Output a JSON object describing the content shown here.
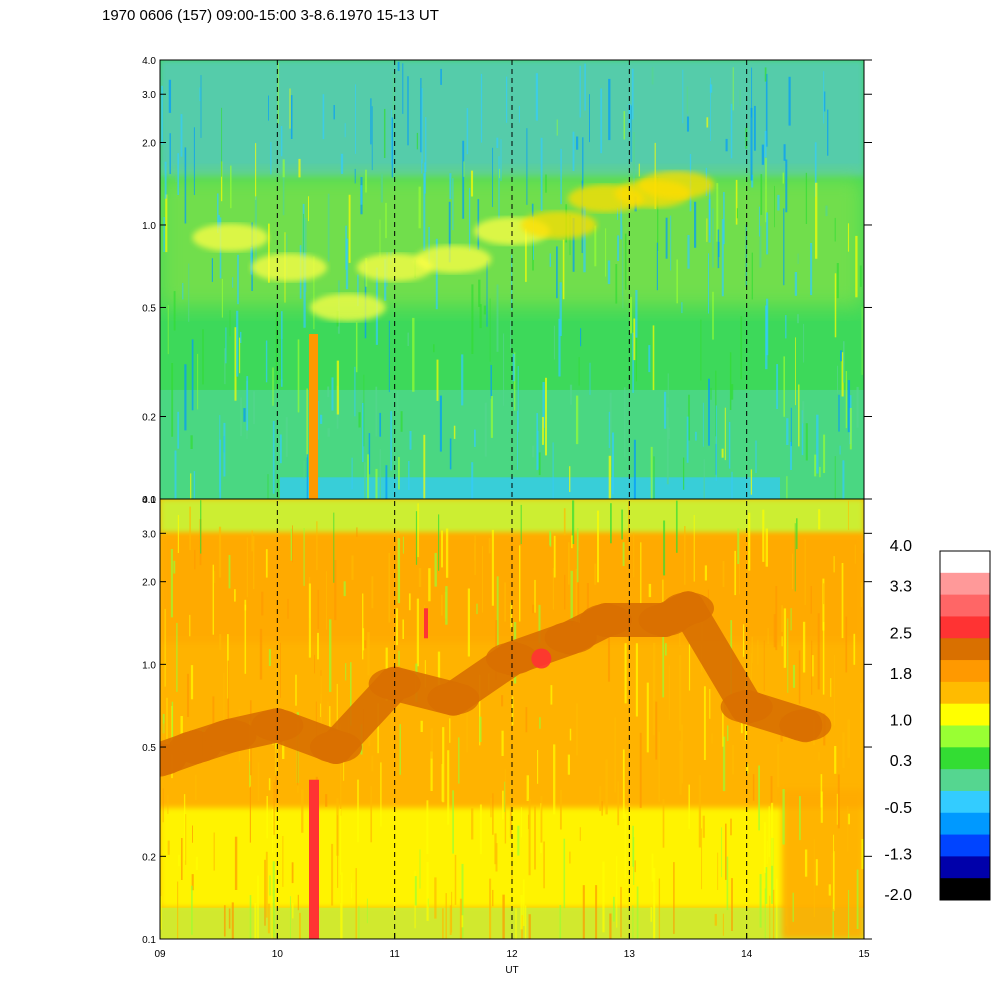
{
  "chart_data": {
    "type": "heatmap",
    "title": "1970 0606 (157) 09:00-15:00 3-8.6.1970  15-13 UT",
    "xlabel": "UT",
    "x_ticks": [
      "09",
      "10",
      "11",
      "12",
      "13",
      "14",
      "15"
    ],
    "xlim": [
      9,
      15
    ],
    "x_scale": "linear (hours UT)",
    "grid": "dashed vertical lines at each hour",
    "panels": [
      {
        "name": "upper",
        "y_scale": "log",
        "ylim": [
          0.1,
          4.0
        ],
        "y_ticks": [
          "0.1",
          "0.2",
          "0.5",
          "1.0",
          "2.0",
          "3.0",
          "4.0"
        ],
        "dominant_levels": "green/cyan (0.3 to -0.5) with yellow-orange band near 1.0-1.5",
        "feature_track": [
          {
            "x": 9.6,
            "y": 0.9
          },
          {
            "x": 10.1,
            "y": 0.7
          },
          {
            "x": 10.6,
            "y": 0.5
          },
          {
            "x": 11.0,
            "y": 0.7
          },
          {
            "x": 11.5,
            "y": 0.75
          },
          {
            "x": 12.0,
            "y": 0.95
          },
          {
            "x": 12.4,
            "y": 1.0
          },
          {
            "x": 12.8,
            "y": 1.25
          },
          {
            "x": 13.2,
            "y": 1.3
          },
          {
            "x": 13.4,
            "y": 1.4
          }
        ]
      },
      {
        "name": "lower",
        "y_scale": "log",
        "ylim": [
          0.1,
          4.0
        ],
        "y_ticks": [
          "0.1",
          "0.2",
          "0.5",
          "1.0",
          "2.0",
          "3.0",
          "4.0"
        ],
        "dominant_levels": "orange/yellow (1.0 to 2.5) with dark-orange band",
        "feature_track": [
          {
            "x": 9.0,
            "y": 0.45
          },
          {
            "x": 9.3,
            "y": 0.5
          },
          {
            "x": 9.6,
            "y": 0.55
          },
          {
            "x": 10.0,
            "y": 0.6
          },
          {
            "x": 10.5,
            "y": 0.5
          },
          {
            "x": 11.0,
            "y": 0.85
          },
          {
            "x": 11.5,
            "y": 0.75
          },
          {
            "x": 12.0,
            "y": 1.05
          },
          {
            "x": 12.5,
            "y": 1.25
          },
          {
            "x": 12.8,
            "y": 1.45
          },
          {
            "x": 13.3,
            "y": 1.45
          },
          {
            "x": 13.5,
            "y": 1.6
          },
          {
            "x": 14.0,
            "y": 0.7
          },
          {
            "x": 14.5,
            "y": 0.6
          }
        ]
      }
    ],
    "colorbar": {
      "labels": [
        "4.0",
        "3.3",
        "2.5",
        "1.8",
        "1.0",
        "0.3",
        "-0.5",
        "-1.3",
        "-2.0"
      ],
      "levels": [
        4.0,
        3.3,
        2.5,
        1.8,
        1.0,
        0.3,
        -0.5,
        -1.3,
        -2.0
      ],
      "colors": [
        "#ffffff",
        "#ff9999",
        "#ff6666",
        "#ff3333",
        "#d97000",
        "#ff9900",
        "#ffbb00",
        "#ffff00",
        "#99ff33",
        "#33dd33",
        "#55d690",
        "#33ccff",
        "#0099ff",
        "#0044ff",
        "#0000aa",
        "#000000"
      ]
    }
  }
}
